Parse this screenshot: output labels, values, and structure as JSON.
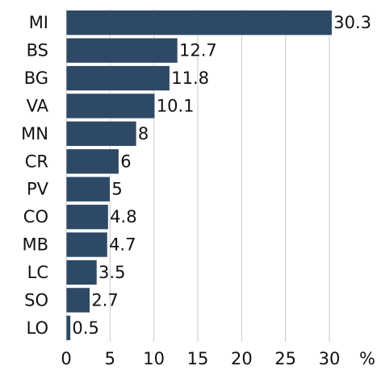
{
  "chart_data": {
    "type": "bar",
    "orientation": "horizontal",
    "categories": [
      "MI",
      "BS",
      "BG",
      "VA",
      "MN",
      "CR",
      "PV",
      "CO",
      "MB",
      "LC",
      "SO",
      "LO"
    ],
    "values": [
      30.3,
      12.7,
      11.8,
      10.1,
      8,
      6,
      5,
      4.8,
      4.7,
      3.5,
      2.7,
      0.5
    ],
    "color": "#2e4966",
    "x_label": "%",
    "xlim": [
      0,
      30
    ],
    "xticks": [
      0,
      5,
      10,
      15,
      20,
      25,
      30
    ],
    "grid": true
  }
}
